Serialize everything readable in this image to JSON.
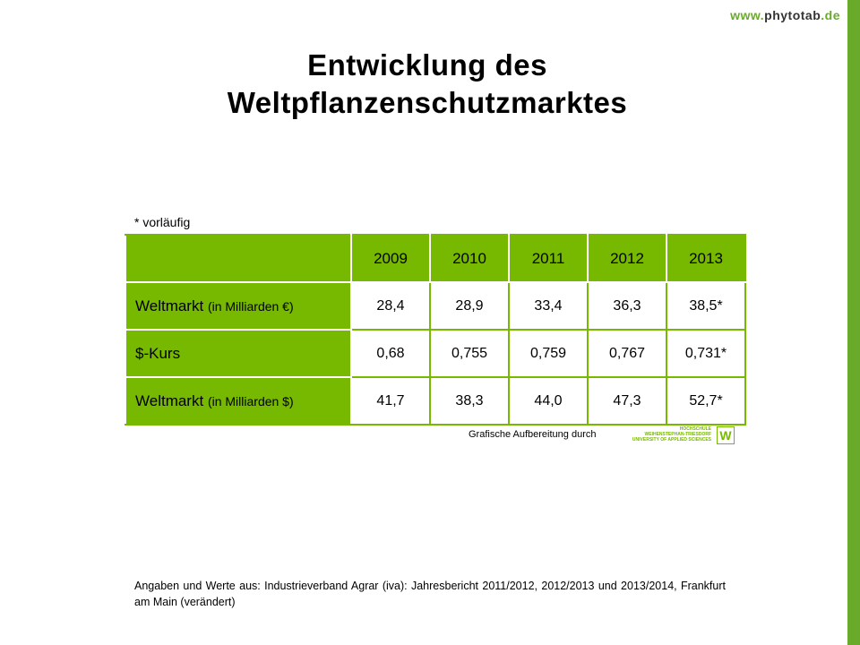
{
  "url": {
    "prefix": "www.",
    "domain": "phytotab",
    "tld": ".de"
  },
  "title_line1": "Entwicklung des",
  "title_line2": "Weltpflanzenschutzmarktes",
  "note": "* vorläufig",
  "table": {
    "years": [
      "2009",
      "2010",
      "2011",
      "2012",
      "2013"
    ],
    "rows": [
      {
        "label": "Weltmarkt",
        "unit": "(in Milliarden €)",
        "values": [
          "28,4",
          "28,9",
          "33,4",
          "36,3",
          "38,5*"
        ]
      },
      {
        "label": "$-Kurs",
        "unit": "",
        "values": [
          "0,68",
          "0,755",
          "0,759",
          "0,767",
          "0,731*"
        ]
      },
      {
        "label": "Weltmarkt",
        "unit": "(in Milliarden $)",
        "values": [
          "41,7",
          "38,3",
          "44,0",
          "47,3",
          "52,7*"
        ]
      }
    ]
  },
  "credit": "Grafische Aufbereitung durch",
  "logo": {
    "line1": "HOCHSCHULE",
    "line2": "WEIHENSTEPHAN-TRIESDORF",
    "line3": "UNIVERSITY OF APPLIED SCIENCES"
  },
  "source": "Angaben und Werte aus: Industrieverband Agrar (iva): Jahresbericht 2011/2012, 2012/2013 und 2013/2014, Frankfurt am Main (verändert)"
}
